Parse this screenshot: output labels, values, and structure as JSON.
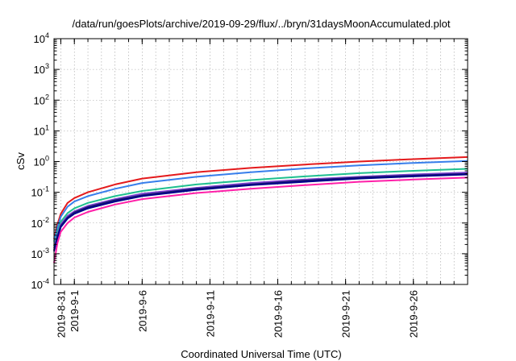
{
  "chart_data": {
    "type": "line",
    "title": "/data/run/goesPlots/archive/2019-09-29/flux/../bryn/31daysMoonAccumulated.plot",
    "xlabel": "Coordinated Universal Time (UTC)",
    "ylabel": "cSv",
    "yscale": "log",
    "ylim": [
      0.0001,
      10000
    ],
    "xlim": [
      "2019-08-30 12:00",
      "2019-09-30"
    ],
    "grid": true,
    "y_ticks": [
      {
        "base": "10",
        "exp": "-4",
        "value": 0.0001
      },
      {
        "base": "10",
        "exp": "-3",
        "value": 0.001
      },
      {
        "base": "10",
        "exp": "-2",
        "value": 0.01
      },
      {
        "base": "10",
        "exp": "-1",
        "value": 0.1
      },
      {
        "base": "10",
        "exp": "0",
        "value": 1
      },
      {
        "base": "10",
        "exp": "1",
        "value": 10
      },
      {
        "base": "10",
        "exp": "2",
        "value": 100
      },
      {
        "base": "10",
        "exp": "3",
        "value": 1000
      },
      {
        "base": "10",
        "exp": "4",
        "value": 10000
      }
    ],
    "x_ticks": [
      {
        "label": "2019-8-31",
        "date": "2019-08-31"
      },
      {
        "label": "2019-9-1",
        "date": "2019-09-01"
      },
      {
        "label": "2019-9-6",
        "date": "2019-09-06"
      },
      {
        "label": "2019-9-11",
        "date": "2019-09-11"
      },
      {
        "label": "2019-9-16",
        "date": "2019-09-16"
      },
      {
        "label": "2019-9-21",
        "date": "2019-09-21"
      },
      {
        "label": "2019-9-26",
        "date": "2019-09-26"
      }
    ],
    "x": [
      "2019-08-30 12:00",
      "2019-08-30 18:00",
      "2019-08-31 00:00",
      "2019-08-31 12:00",
      "2019-09-01",
      "2019-09-02",
      "2019-09-04",
      "2019-09-06",
      "2019-09-10",
      "2019-09-14",
      "2019-09-18",
      "2019-09-22",
      "2019-09-26",
      "2019-09-30"
    ],
    "series": [
      {
        "color": "#e41a1c",
        "values": [
          0.003,
          0.009,
          0.02,
          0.045,
          0.065,
          0.1,
          0.18,
          0.28,
          0.45,
          0.62,
          0.8,
          1.0,
          1.2,
          1.4
        ]
      },
      {
        "color": "#377eeb",
        "values": [
          0.0025,
          0.007,
          0.016,
          0.034,
          0.05,
          0.075,
          0.13,
          0.2,
          0.32,
          0.45,
          0.6,
          0.75,
          0.9,
          1.05
        ]
      },
      {
        "color": "#1fbf8f",
        "values": [
          0.0018,
          0.005,
          0.011,
          0.021,
          0.03,
          0.045,
          0.075,
          0.11,
          0.18,
          0.25,
          0.33,
          0.42,
          0.5,
          0.58
        ]
      },
      {
        "color": "#7b3fd0",
        "values": [
          0.0015,
          0.004,
          0.009,
          0.017,
          0.024,
          0.036,
          0.06,
          0.09,
          0.14,
          0.2,
          0.26,
          0.32,
          0.38,
          0.44
        ]
      },
      {
        "color": "#1a1a6e",
        "values": [
          0.0013,
          0.0035,
          0.008,
          0.015,
          0.022,
          0.033,
          0.055,
          0.08,
          0.13,
          0.18,
          0.24,
          0.3,
          0.35,
          0.4
        ]
      },
      {
        "color": "#00008b",
        "values": [
          0.0012,
          0.0032,
          0.0074,
          0.014,
          0.02,
          0.03,
          0.05,
          0.075,
          0.12,
          0.17,
          0.22,
          0.28,
          0.33,
          0.38
        ]
      },
      {
        "color": "#ff1fa8",
        "values": [
          0.0005,
          0.0022,
          0.0052,
          0.01,
          0.015,
          0.023,
          0.04,
          0.06,
          0.095,
          0.13,
          0.17,
          0.22,
          0.26,
          0.3
        ]
      }
    ]
  }
}
